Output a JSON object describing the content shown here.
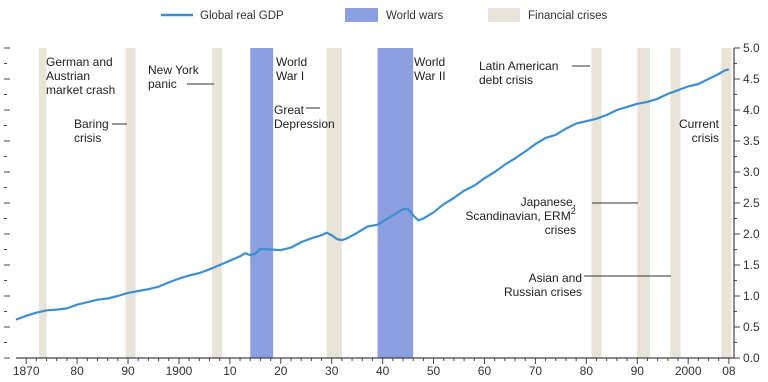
{
  "chart_data": {
    "type": "line",
    "title": "",
    "xlabel": "",
    "ylabel": "",
    "xlim": [
      1868,
      2009
    ],
    "ylim": [
      0,
      5.0
    ],
    "x_tick_labels": [
      "1870",
      "80",
      "90",
      "1900",
      "10",
      "20",
      "30",
      "40",
      "50",
      "60",
      "70",
      "80",
      "90",
      "2000",
      "08"
    ],
    "x_tick_values": [
      1870,
      1880,
      1890,
      1900,
      1910,
      1920,
      1930,
      1940,
      1950,
      1960,
      1970,
      1980,
      1990,
      2000,
      2008
    ],
    "y_tick_labels": [
      "0.0",
      "0.5",
      "1.0",
      "1.5",
      "2.0",
      "2.5",
      "3.0",
      "3.5",
      "4.0",
      "4.5",
      "5.0"
    ],
    "y_tick_values": [
      0,
      0.5,
      1,
      1.5,
      2,
      2.5,
      3,
      3.5,
      4,
      4.5,
      5
    ],
    "grid": false,
    "legend": {
      "placement": "top",
      "entries": [
        {
          "name": "Global real GDP",
          "kind": "line",
          "color": "#3e8fcf"
        },
        {
          "name": "World wars",
          "kind": "band",
          "color": "#8c9fe0"
        },
        {
          "name": "Financial crises",
          "kind": "band",
          "color": "#e8e4d8"
        }
      ]
    },
    "series": [
      {
        "name": "Global real GDP",
        "color": "#3e8fcf",
        "x": [
          1868,
          1870,
          1872,
          1874,
          1876,
          1878,
          1880,
          1882,
          1884,
          1886,
          1888,
          1890,
          1892,
          1894,
          1896,
          1898,
          1900,
          1902,
          1904,
          1906,
          1908,
          1910,
          1912,
          1913,
          1914,
          1915,
          1916,
          1918,
          1920,
          1922,
          1924,
          1926,
          1928,
          1929,
          1930,
          1931,
          1932,
          1933,
          1935,
          1937,
          1939,
          1941,
          1943,
          1944,
          1945,
          1946,
          1947,
          1948,
          1950,
          1952,
          1954,
          1956,
          1958,
          1960,
          1962,
          1964,
          1966,
          1968,
          1970,
          1972,
          1974,
          1976,
          1978,
          1980,
          1982,
          1984,
          1986,
          1988,
          1990,
          1992,
          1994,
          1996,
          1998,
          2000,
          2002,
          2004,
          2006,
          2007,
          2008
        ],
        "values": [
          0.62,
          0.68,
          0.73,
          0.77,
          0.78,
          0.8,
          0.86,
          0.9,
          0.94,
          0.96,
          1.0,
          1.05,
          1.08,
          1.11,
          1.15,
          1.22,
          1.28,
          1.33,
          1.37,
          1.43,
          1.5,
          1.57,
          1.64,
          1.69,
          1.66,
          1.68,
          1.76,
          1.75,
          1.74,
          1.78,
          1.87,
          1.93,
          1.98,
          2.02,
          1.98,
          1.92,
          1.9,
          1.93,
          2.02,
          2.12,
          2.15,
          2.25,
          2.35,
          2.4,
          2.4,
          2.3,
          2.22,
          2.25,
          2.35,
          2.48,
          2.58,
          2.7,
          2.78,
          2.9,
          3.0,
          3.12,
          3.22,
          3.33,
          3.45,
          3.55,
          3.6,
          3.7,
          3.78,
          3.82,
          3.86,
          3.92,
          4.0,
          4.05,
          4.1,
          4.13,
          4.18,
          4.26,
          4.32,
          4.38,
          4.42,
          4.5,
          4.58,
          4.63,
          4.66
        ]
      }
    ],
    "bands": [
      {
        "kind": "world_war",
        "label": "World War I",
        "start": 1914,
        "end": 1918.5
      },
      {
        "kind": "world_war",
        "label": "World War II",
        "start": 1939,
        "end": 1946
      },
      {
        "kind": "financial_crisis",
        "start": 1872.5,
        "end": 1874
      },
      {
        "kind": "financial_crisis",
        "start": 1889.5,
        "end": 1891.5
      },
      {
        "kind": "financial_crisis",
        "start": 1906.5,
        "end": 1908.5
      },
      {
        "kind": "financial_crisis",
        "start": 1929,
        "end": 1932
      },
      {
        "kind": "financial_crisis",
        "start": 1981,
        "end": 1983
      },
      {
        "kind": "financial_crisis",
        "start": 1990,
        "end": 1992.5
      },
      {
        "kind": "financial_crisis",
        "start": 1996.5,
        "end": 1998.5
      },
      {
        "kind": "financial_crisis",
        "start": 2006.5,
        "end": 2008.5
      }
    ],
    "annotations": [
      {
        "lines": [
          "German and",
          "Austrian",
          "market crash"
        ]
      },
      {
        "lines": [
          "New York",
          "panic"
        ]
      },
      {
        "lines": [
          "Baring",
          "crisis"
        ]
      },
      {
        "lines": [
          "World",
          "War I"
        ]
      },
      {
        "lines": [
          "Great",
          "Depression"
        ]
      },
      {
        "lines": [
          "World",
          "War II"
        ]
      },
      {
        "lines": [
          "Latin American",
          "debt crisis"
        ]
      },
      {
        "lines": [
          "Current",
          "crisis"
        ]
      },
      {
        "lines": [
          "Japanese,",
          "Scandinavian, ERM",
          "crises"
        ],
        "superscript": "2"
      },
      {
        "lines": [
          "Asian and",
          "Russian crises"
        ]
      }
    ]
  }
}
